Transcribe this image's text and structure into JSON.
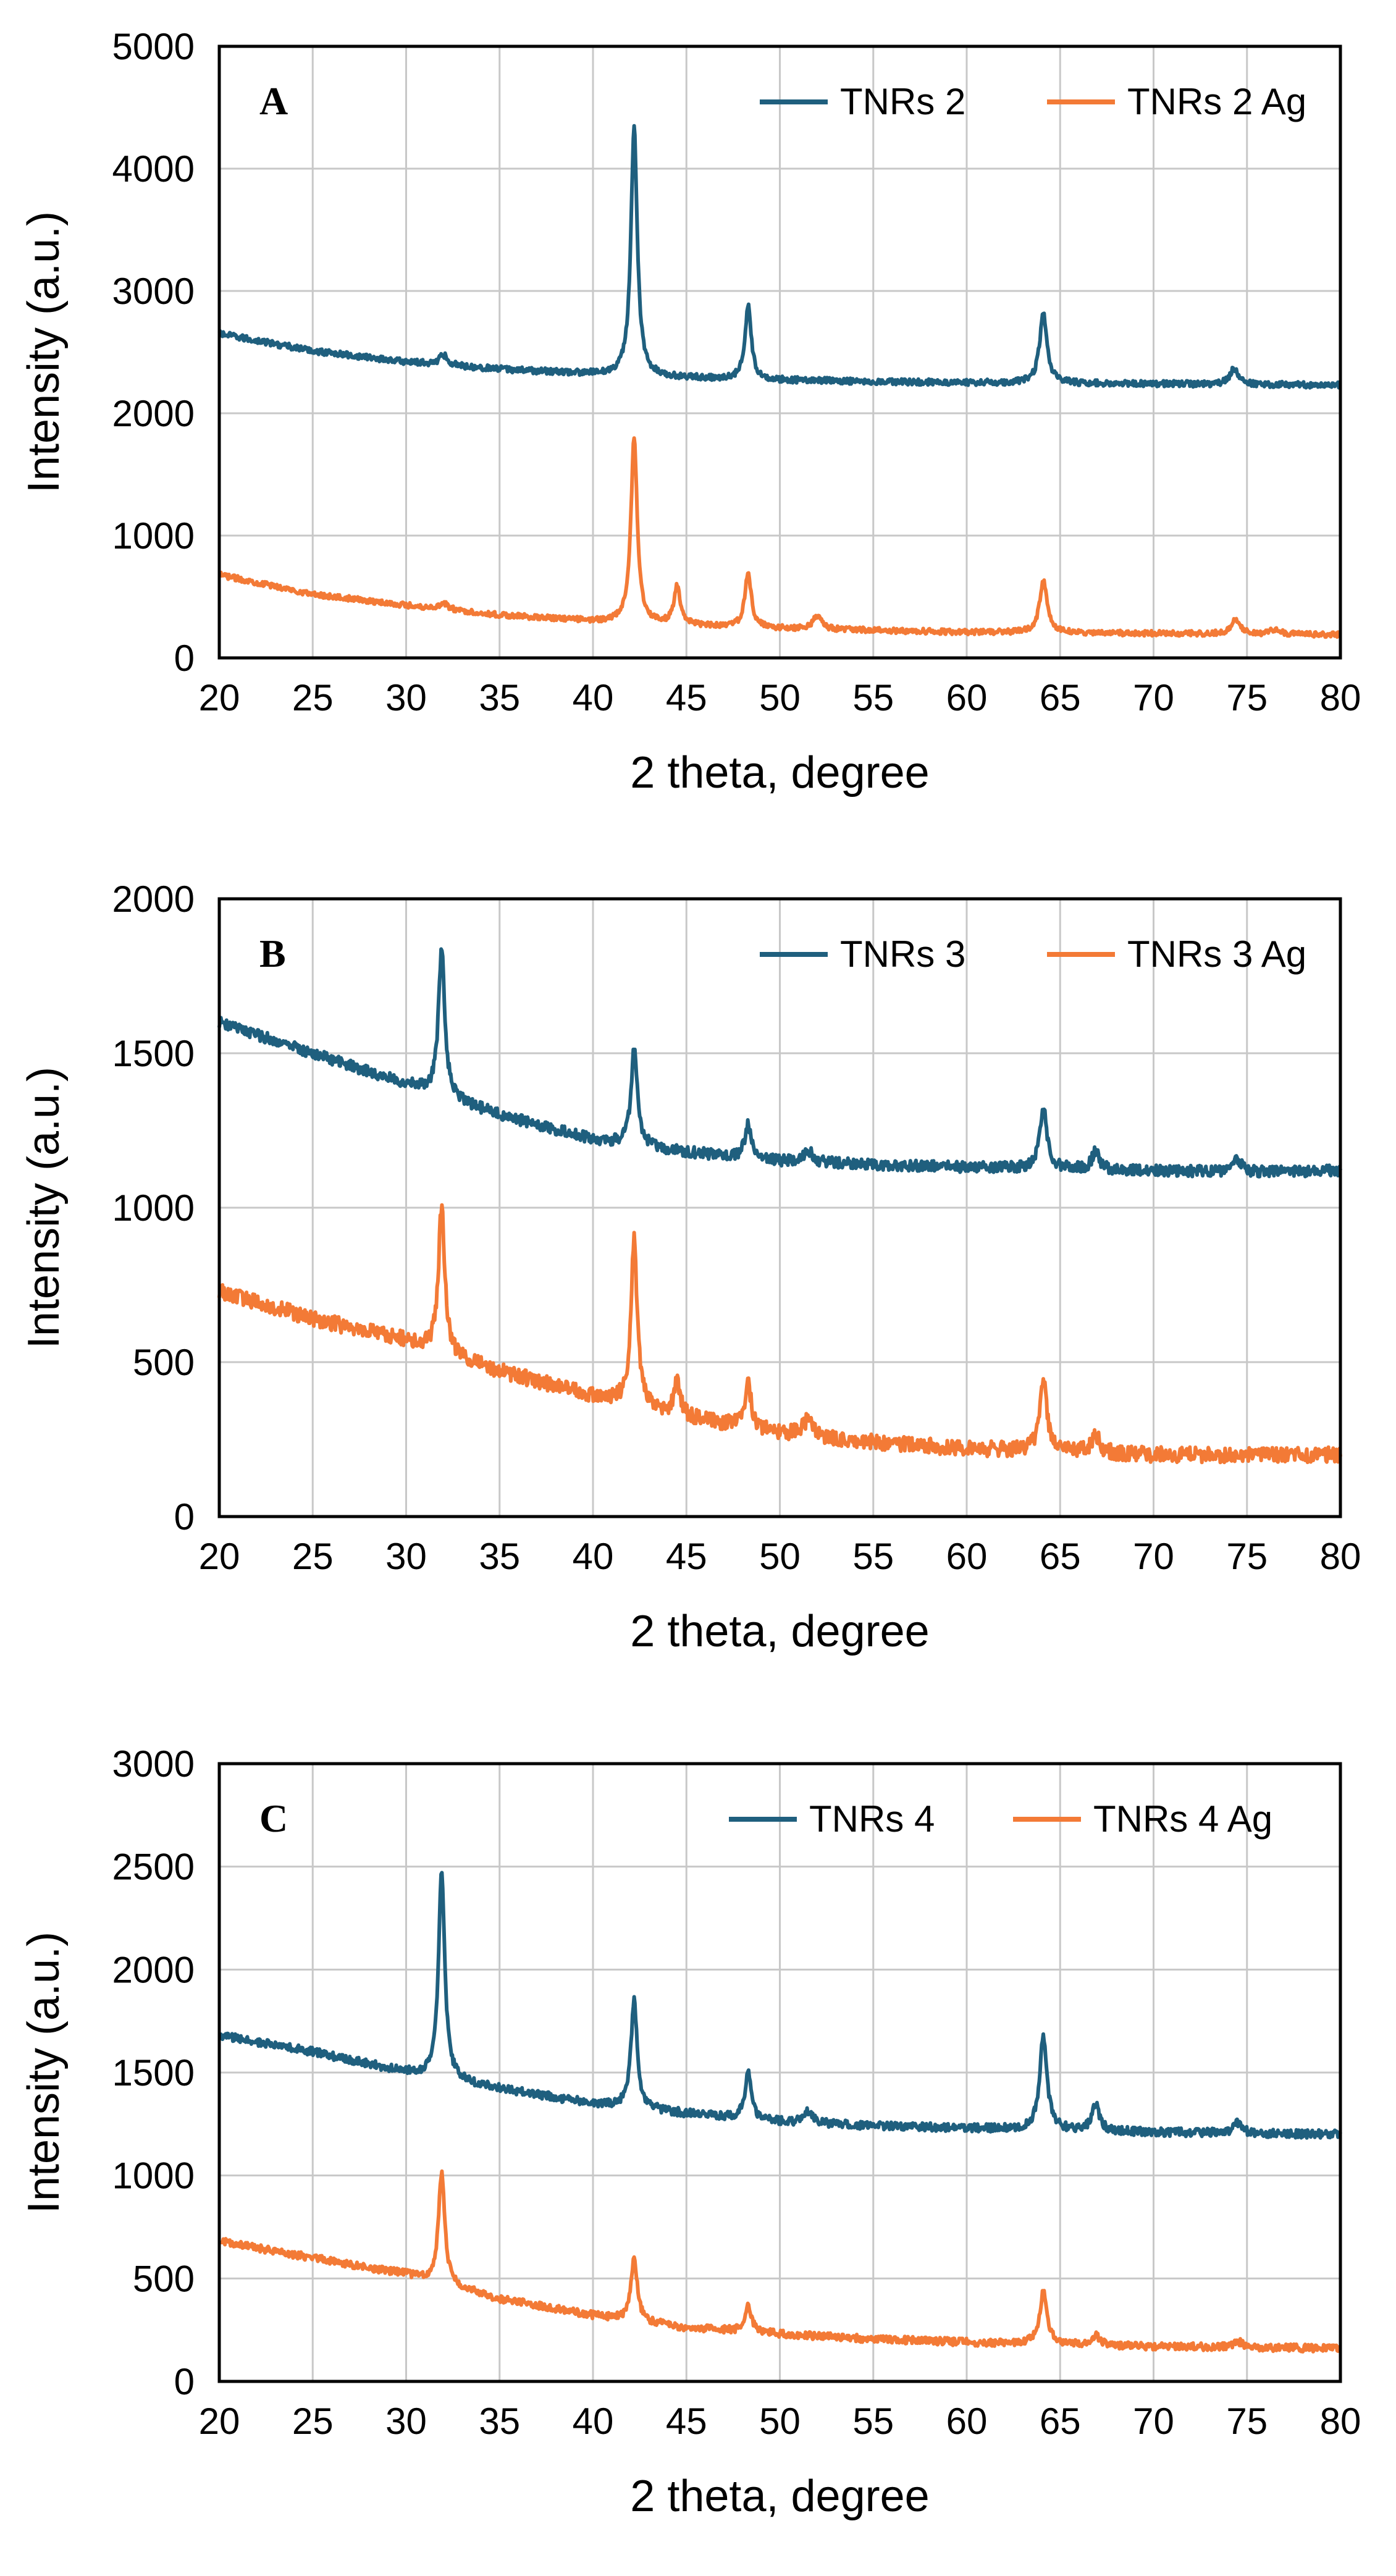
{
  "figure": {
    "colors": {
      "blue": "#1f5f7e",
      "orange": "#f37a36",
      "grid": "#c8c8c8",
      "axis": "#000000"
    }
  },
  "chart_data": [
    {
      "type": "line",
      "panel": "A",
      "title": "",
      "xlabel": "2 theta, degree",
      "ylabel": "Intensity (a.u.)",
      "xlim": [
        20,
        80
      ],
      "ylim": [
        0,
        5000
      ],
      "xticks": [
        20,
        25,
        30,
        35,
        40,
        45,
        50,
        55,
        60,
        65,
        70,
        75,
        80
      ],
      "yticks": [
        0,
        1000,
        2000,
        3000,
        4000,
        5000
      ],
      "grid": true,
      "legend": "top-right",
      "series": [
        {
          "name": "TNRs 2",
          "color": "#1f5f7e",
          "baseline": [
            [
              20,
              2650
            ],
            [
              25,
              2510
            ],
            [
              30,
              2420
            ],
            [
              35,
              2360
            ],
            [
              40,
              2320
            ],
            [
              45,
              2290
            ],
            [
              50,
              2270
            ],
            [
              55,
              2260
            ],
            [
              60,
              2250
            ],
            [
              65,
              2245
            ],
            [
              70,
              2240
            ],
            [
              75,
              2235
            ],
            [
              80,
              2230
            ]
          ],
          "peaks": [
            [
              32,
              80,
              0.4
            ],
            [
              42.2,
              2030,
              0.3
            ],
            [
              48.3,
              600,
              0.3
            ],
            [
              64.1,
              570,
              0.35
            ],
            [
              74.3,
              130,
              0.4
            ]
          ],
          "noise": 25
        },
        {
          "name": "TNRs 2 Ag",
          "color": "#f37a36",
          "baseline": [
            [
              20,
              680
            ],
            [
              25,
              520
            ],
            [
              30,
              430
            ],
            [
              35,
              350
            ],
            [
              40,
              300
            ],
            [
              45,
              265
            ],
            [
              50,
              240
            ],
            [
              55,
              225
            ],
            [
              60,
              210
            ],
            [
              65,
              205
            ],
            [
              70,
              200
            ],
            [
              75,
              195
            ],
            [
              80,
              190
            ]
          ],
          "peaks": [
            [
              32,
              50,
              0.4
            ],
            [
              42.2,
              1520,
              0.3
            ],
            [
              44.5,
              320,
              0.3
            ],
            [
              48.3,
              450,
              0.3
            ],
            [
              52,
              110,
              0.4
            ],
            [
              64.1,
              430,
              0.35
            ],
            [
              74.4,
              120,
              0.4
            ],
            [
              76.5,
              40,
              0.4
            ]
          ],
          "noise": 22
        }
      ]
    },
    {
      "type": "line",
      "panel": "B",
      "title": "",
      "xlabel": "2 theta, degree",
      "ylabel": "Intensity (a.u.)",
      "xlim": [
        20,
        80
      ],
      "ylim": [
        0,
        2000
      ],
      "xticks": [
        20,
        25,
        30,
        35,
        40,
        45,
        50,
        55,
        60,
        65,
        70,
        75,
        80
      ],
      "yticks": [
        0,
        500,
        1000,
        1500,
        2000
      ],
      "grid": true,
      "legend": "top-right",
      "series": [
        {
          "name": "TNRs 3",
          "color": "#1f5f7e",
          "baseline": [
            [
              20,
              1600
            ],
            [
              25,
              1500
            ],
            [
              30,
              1400
            ],
            [
              35,
              1300
            ],
            [
              40,
              1220
            ],
            [
              45,
              1180
            ],
            [
              50,
              1150
            ],
            [
              55,
              1140
            ],
            [
              60,
              1130
            ],
            [
              65,
              1125
            ],
            [
              70,
              1120
            ],
            [
              75,
              1115
            ],
            [
              80,
              1120
            ]
          ],
          "peaks": [
            [
              31.9,
              470,
              0.3
            ],
            [
              42.2,
              310,
              0.3
            ],
            [
              48.3,
              110,
              0.3
            ],
            [
              51.5,
              40,
              0.4
            ],
            [
              64.1,
              200,
              0.35
            ],
            [
              66.9,
              60,
              0.35
            ],
            [
              74.5,
              40,
              0.4
            ]
          ],
          "noise": 18
        },
        {
          "name": "TNRs 3 Ag",
          "color": "#f37a36",
          "baseline": [
            [
              20,
              730
            ],
            [
              25,
              640
            ],
            [
              30,
              570
            ],
            [
              35,
              470
            ],
            [
              40,
              390
            ],
            [
              45,
              320
            ],
            [
              50,
              270
            ],
            [
              55,
              240
            ],
            [
              60,
              220
            ],
            [
              65,
              210
            ],
            [
              70,
              200
            ],
            [
              75,
              200
            ],
            [
              80,
              200
            ]
          ],
          "peaks": [
            [
              31.9,
              470,
              0.3
            ],
            [
              42.2,
              540,
              0.3
            ],
            [
              44.5,
              110,
              0.3
            ],
            [
              48.3,
              140,
              0.3
            ],
            [
              51.5,
              50,
              0.5
            ],
            [
              64.1,
              230,
              0.35
            ],
            [
              66.9,
              60,
              0.35
            ]
          ],
          "noise": 25
        }
      ]
    },
    {
      "type": "line",
      "panel": "C",
      "title": "",
      "xlabel": "2 theta, degree",
      "ylabel": "Intensity (a.u.)",
      "xlim": [
        20,
        80
      ],
      "ylim": [
        0,
        3000
      ],
      "xticks": [
        20,
        25,
        30,
        35,
        40,
        45,
        50,
        55,
        60,
        65,
        70,
        75,
        80
      ],
      "yticks": [
        0,
        500,
        1000,
        1500,
        2000,
        2500,
        3000
      ],
      "grid": true,
      "legend": "top-right",
      "series": [
        {
          "name": "TNRs  4",
          "color": "#1f5f7e",
          "baseline": [
            [
              20,
              1680
            ],
            [
              25,
              1600
            ],
            [
              30,
              1500
            ],
            [
              35,
              1420
            ],
            [
              40,
              1350
            ],
            [
              45,
              1300
            ],
            [
              50,
              1260
            ],
            [
              55,
              1240
            ],
            [
              60,
              1230
            ],
            [
              65,
              1220
            ],
            [
              70,
              1210
            ],
            [
              75,
              1205
            ],
            [
              80,
              1200
            ]
          ],
          "peaks": [
            [
              31.9,
              1000,
              0.3
            ],
            [
              42.2,
              520,
              0.3
            ],
            [
              48.3,
              230,
              0.3
            ],
            [
              51.5,
              60,
              0.4
            ],
            [
              64.1,
              460,
              0.35
            ],
            [
              66.9,
              130,
              0.35
            ],
            [
              74.5,
              50,
              0.4
            ]
          ],
          "noise": 20
        },
        {
          "name": "TNRs 4 Ag",
          "color": "#f37a36",
          "baseline": [
            [
              20,
              680
            ],
            [
              25,
              600
            ],
            [
              30,
              520
            ],
            [
              35,
              400
            ],
            [
              40,
              320
            ],
            [
              45,
              260
            ],
            [
              50,
              230
            ],
            [
              55,
              205
            ],
            [
              60,
              190
            ],
            [
              65,
              180
            ],
            [
              70,
              170
            ],
            [
              75,
              165
            ],
            [
              80,
              160
            ]
          ],
          "peaks": [
            [
              31.9,
              540,
              0.3
            ],
            [
              42.2,
              310,
              0.3
            ],
            [
              48.3,
              140,
              0.3
            ],
            [
              64.1,
              250,
              0.35
            ],
            [
              66.9,
              50,
              0.35
            ],
            [
              74.5,
              30,
              0.4
            ]
          ],
          "noise": 18
        }
      ]
    }
  ]
}
